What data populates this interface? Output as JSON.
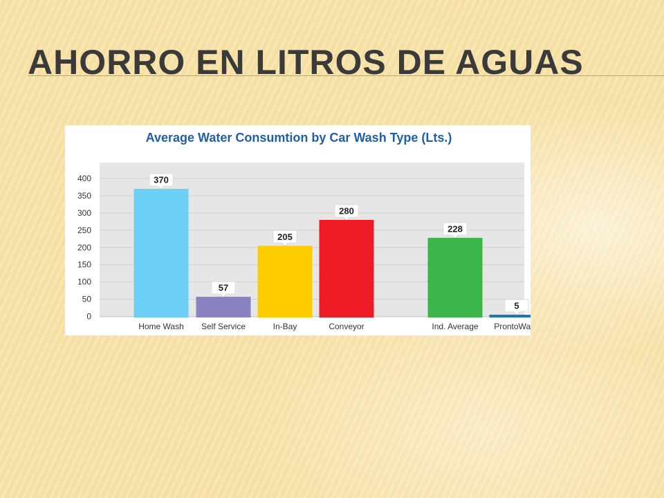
{
  "slide": {
    "title": "AHORRO EN LITROS DE AGUAS"
  },
  "chart_data": {
    "type": "bar",
    "title": "Average Water Consumtion by Car Wash Type (Lts.)",
    "xlabel": "",
    "ylabel": "",
    "ylim": [
      0,
      440
    ],
    "yticks": [
      0,
      50,
      100,
      150,
      200,
      250,
      300,
      350,
      400
    ],
    "grid": true,
    "categories": [
      "Home Wash",
      "Self Service",
      "In-Bay",
      "Conveyor",
      "Ind. Average",
      "ProntoWash"
    ],
    "values": [
      370,
      57,
      205,
      280,
      228,
      5
    ],
    "colors": [
      "#6ccff6",
      "#8a83c2",
      "#ffcc00",
      "#ed1c24",
      "#3cb54a",
      "#1b75bc"
    ]
  }
}
